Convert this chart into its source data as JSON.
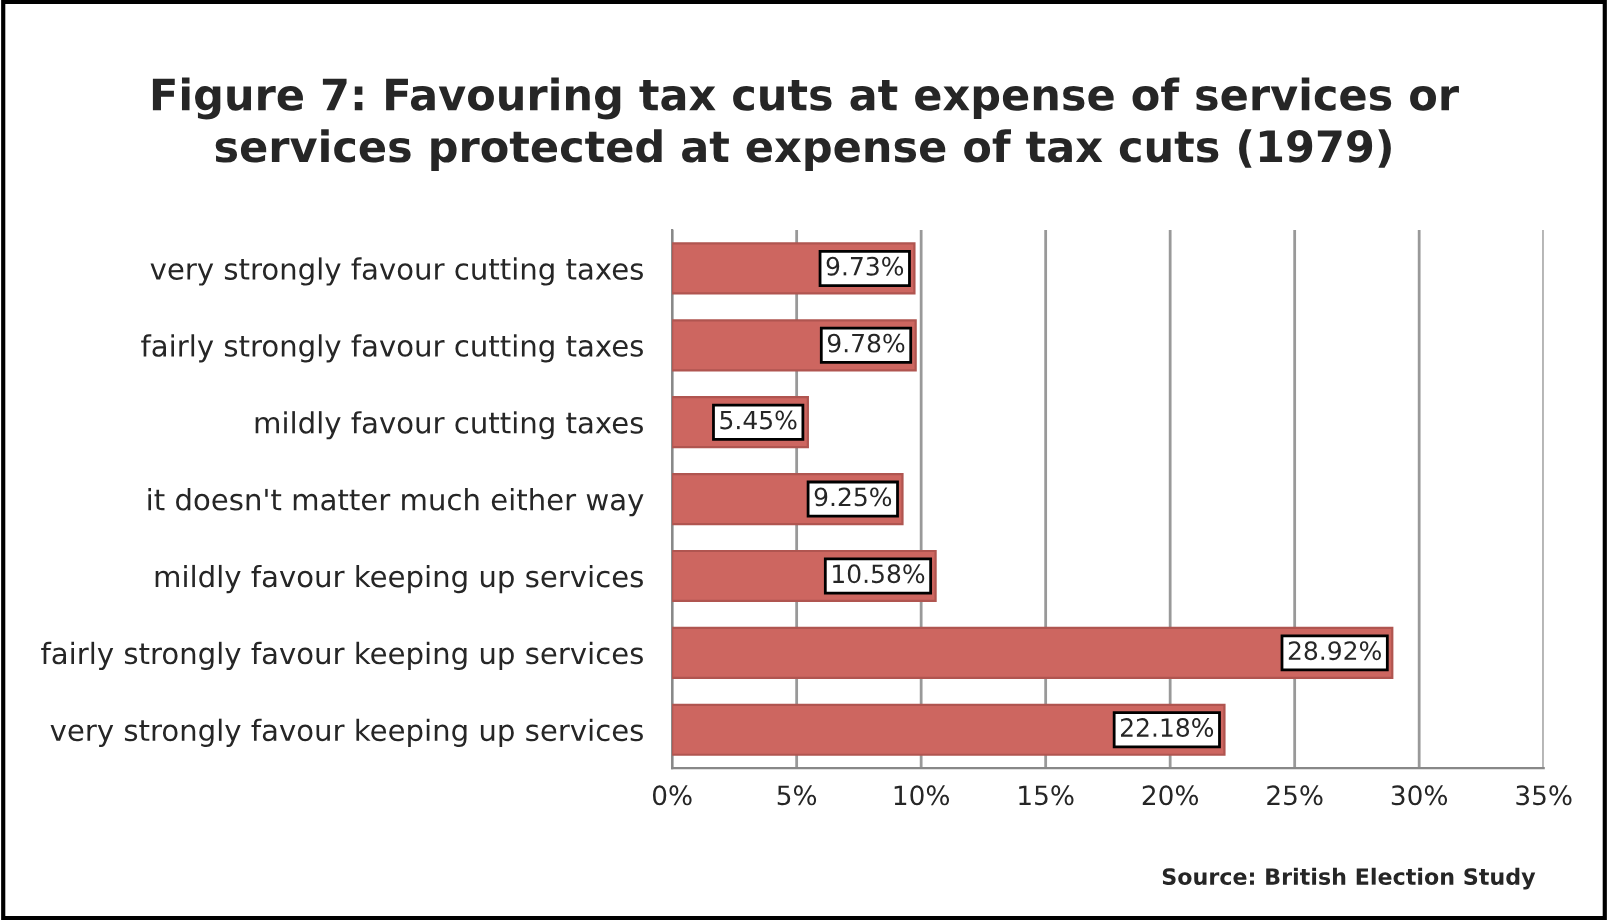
{
  "chart_data": {
    "type": "bar",
    "orientation": "horizontal",
    "title": "Figure 7: Favouring tax cuts at expense of services or\nservices protected at expense of tax cuts (1979)",
    "categories": [
      "very strongly favour cutting taxes",
      "fairly strongly favour cutting taxes",
      "mildly favour cutting taxes",
      "it doesn't matter much either way",
      "mildly favour keeping up services",
      "fairly strongly favour keeping up services",
      "very strongly favour keeping up services"
    ],
    "values": [
      9.73,
      9.78,
      5.45,
      9.25,
      10.58,
      28.92,
      22.18
    ],
    "value_labels": [
      "9.73%",
      "9.78%",
      "5.45%",
      "9.25%",
      "10.58%",
      "28.92%",
      "22.18%"
    ],
    "color": "#cd6660",
    "xlim": [
      0,
      35
    ],
    "xticks": [
      {
        "value": 0,
        "label": "0%"
      },
      {
        "value": 5,
        "label": "5%"
      },
      {
        "value": 10,
        "label": "10%"
      },
      {
        "value": 15,
        "label": "15%"
      },
      {
        "value": 20,
        "label": "20%"
      },
      {
        "value": 25,
        "label": "25%"
      },
      {
        "value": 30,
        "label": "30%"
      },
      {
        "value": 35,
        "label": "35%"
      }
    ],
    "grid": "x",
    "legend": false,
    "annotations": [
      "Source: British Election Study"
    ]
  }
}
